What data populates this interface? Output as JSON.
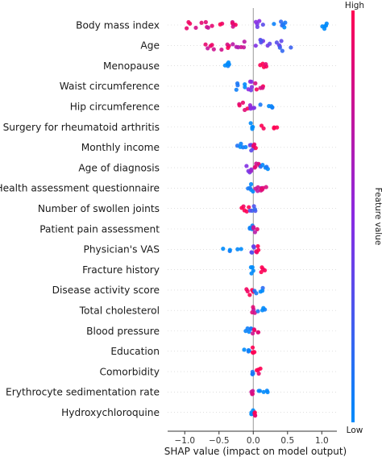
{
  "chart_data": {
    "type": "beeswarm",
    "xlabel": "SHAP value (impact on model output)",
    "xlim": [
      -1.25,
      1.22
    ],
    "xticks": [
      "−1.0",
      "−0.5",
      "0.0",
      "0.5",
      "1.0"
    ],
    "xtick_values": [
      -1.0,
      -0.5,
      0.0,
      0.5,
      1.0
    ],
    "colorbar": {
      "high_label": "High",
      "low_label": "Low",
      "title": "Feature value"
    },
    "colors": {
      "high": "#ff0052",
      "mid": "#8a2be2",
      "low": "#008bfb",
      "zero_line": "#999999"
    },
    "features": [
      {
        "name": "Body mass index",
        "clusters": [
          [
            -1.05,
            -0.6,
            0.85,
            0.09
          ],
          [
            -0.55,
            -0.25,
            0.9,
            0.09
          ],
          [
            0.0,
            0.15,
            0.45,
            0.06
          ],
          [
            0.3,
            0.55,
            0.1,
            0.08
          ],
          [
            0.88,
            1.08,
            0.0,
            0.06
          ]
        ]
      },
      {
        "name": "Age",
        "clusters": [
          [
            -0.7,
            -0.3,
            0.85,
            0.1
          ],
          [
            -0.3,
            -0.05,
            0.7,
            0.07
          ],
          [
            0.0,
            0.3,
            0.35,
            0.08
          ],
          [
            0.3,
            0.65,
            0.25,
            0.08
          ]
        ]
      },
      {
        "name": "Menopause",
        "clusters": [
          [
            -0.5,
            -0.32,
            0.0,
            0.05
          ],
          [
            0.05,
            0.2,
            1.0,
            0.07
          ]
        ]
      },
      {
        "name": "Waist circumference",
        "clusters": [
          [
            -0.3,
            -0.12,
            0.0,
            0.05
          ],
          [
            -0.1,
            0.0,
            0.45,
            0.07
          ],
          [
            0.0,
            0.15,
            0.9,
            0.06
          ]
        ]
      },
      {
        "name": "Hip circumference",
        "clusters": [
          [
            -0.25,
            -0.05,
            0.95,
            0.05
          ],
          [
            -0.05,
            0.05,
            0.5,
            0.07
          ],
          [
            0.05,
            0.28,
            0.05,
            0.04
          ]
        ]
      },
      {
        "name": "Surgery for rheumatoid arthritis",
        "clusters": [
          [
            -0.05,
            0.0,
            0.0,
            0.06
          ],
          [
            0.12,
            0.35,
            1.0,
            0.04
          ]
        ]
      },
      {
        "name": "Monthly income",
        "clusters": [
          [
            -0.25,
            -0.1,
            0.0,
            0.04
          ],
          [
            -0.05,
            0.0,
            0.3,
            0.05
          ],
          [
            0.0,
            0.06,
            1.0,
            0.06
          ]
        ]
      },
      {
        "name": "Age of diagnosis",
        "clusters": [
          [
            -0.1,
            0.0,
            0.55,
            0.07
          ],
          [
            0.0,
            0.1,
            0.9,
            0.06
          ],
          [
            0.1,
            0.22,
            0.05,
            0.04
          ]
        ]
      },
      {
        "name": "Health assessment questionnaire",
        "clusters": [
          [
            -0.08,
            0.02,
            0.0,
            0.07
          ],
          [
            0.02,
            0.12,
            0.7,
            0.05
          ],
          [
            0.12,
            0.2,
            0.95,
            0.03
          ]
        ]
      },
      {
        "name": "Number of swollen joints",
        "clusters": [
          [
            -0.2,
            -0.05,
            0.95,
            0.04
          ],
          [
            -0.05,
            0.05,
            0.3,
            0.06
          ]
        ]
      },
      {
        "name": "Patient pain assessment",
        "clusters": [
          [
            -0.08,
            0.0,
            0.05,
            0.06
          ],
          [
            0.0,
            0.06,
            0.8,
            0.05
          ]
        ]
      },
      {
        "name": "Physician's VAS",
        "clusters": [
          [
            -0.45,
            -0.1,
            0.0,
            0.03
          ],
          [
            -0.1,
            0.03,
            0.35,
            0.06
          ],
          [
            0.03,
            0.08,
            0.95,
            0.04
          ]
        ]
      },
      {
        "name": "Fracture history",
        "clusters": [
          [
            -0.04,
            0.0,
            0.0,
            0.06
          ],
          [
            0.08,
            0.22,
            1.0,
            0.03
          ]
        ]
      },
      {
        "name": "Disease activity score",
        "clusters": [
          [
            -0.1,
            0.0,
            0.95,
            0.06
          ],
          [
            0.0,
            0.15,
            0.05,
            0.04
          ]
        ]
      },
      {
        "name": "Total cholesterol",
        "clusters": [
          [
            -0.04,
            0.03,
            0.75,
            0.06
          ],
          [
            0.05,
            0.18,
            0.0,
            0.03
          ]
        ]
      },
      {
        "name": "Blood pressure",
        "clusters": [
          [
            -0.12,
            -0.02,
            0.05,
            0.05
          ],
          [
            -0.02,
            0.08,
            0.85,
            0.06
          ]
        ]
      },
      {
        "name": "Education",
        "clusters": [
          [
            -0.14,
            -0.05,
            0.0,
            0.03
          ],
          [
            -0.02,
            0.03,
            1.0,
            0.06
          ]
        ]
      },
      {
        "name": "Comorbidity",
        "clusters": [
          [
            -0.04,
            0.0,
            0.0,
            0.06
          ],
          [
            0.05,
            0.16,
            1.0,
            0.03
          ]
        ]
      },
      {
        "name": "Erythrocyte sedimentation rate",
        "clusters": [
          [
            -0.04,
            0.02,
            0.85,
            0.06
          ],
          [
            0.05,
            0.22,
            0.0,
            0.03
          ]
        ]
      },
      {
        "name": "Hydroxychloroquine",
        "clusters": [
          [
            -0.03,
            0.0,
            0.0,
            0.05
          ],
          [
            0.0,
            0.04,
            1.0,
            0.05
          ]
        ]
      }
    ]
  }
}
